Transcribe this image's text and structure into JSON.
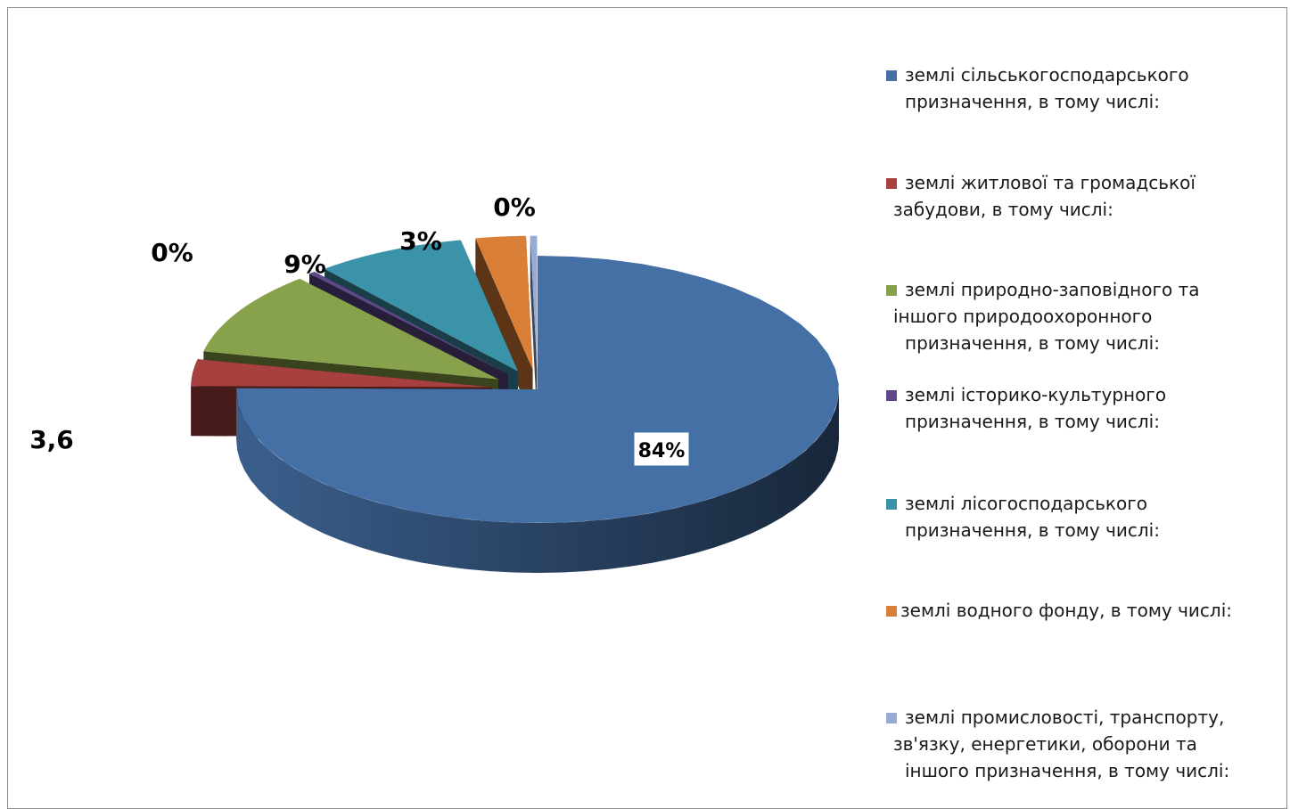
{
  "chart_data": {
    "type": "pie",
    "style": "3d-exploded",
    "slices": [
      {
        "label": "землі сільськогосподарського призначення, в тому числі:",
        "value": 84,
        "data_label": "84%",
        "color": "#4570A6"
      },
      {
        "label": "землі житлової та громадської забудови, в тому числі:",
        "value": 3.6,
        "data_label": "3,6",
        "color": "#A8403F"
      },
      {
        "label": "землі природно-заповідного та іншого природоохоронного призначення, в тому числі:",
        "value": 11.4,
        "data_label": "",
        "color": "#87A24A"
      },
      {
        "label": "землі історико-культурного призначення, в тому числі:",
        "value": 0.4,
        "data_label": "0%",
        "color": "#5E4887"
      },
      {
        "label": "землі лісогосподарського призначення, в тому числі:",
        "value": 9,
        "data_label": "9%",
        "color": "#3B93A9"
      },
      {
        "label": "землі водного фонду, в тому числі:",
        "value": 3,
        "data_label": "3%",
        "color": "#DA7F37"
      },
      {
        "label": "землі промисловості, транспорту, зв'язку, енергетики, оборони та іншого призначення, в тому числі:",
        "value": 0.4,
        "data_label": "0%",
        "color": "#96ABD5"
      }
    ],
    "legend_position": "right"
  },
  "legend": [
    {
      "line1": "землі сільськогосподарського",
      "line2": "призначення, в тому числі:",
      "line3": "",
      "color": "#4570A6"
    },
    {
      "line1": "землі житлової та громадської",
      "line2": "забудови, в тому числі:",
      "line3": "",
      "color": "#A8403F"
    },
    {
      "line1": "землі природно-заповідного та",
      "line2": "іншого природоохоронного",
      "line3": "призначення, в тому числі:",
      "color": "#87A24A"
    },
    {
      "line1": "землі історико-культурного",
      "line2": "призначення, в тому числі:",
      "line3": "",
      "color": "#5E4887"
    },
    {
      "line1": "землі лісогосподарського",
      "line2": "призначення, в тому числі:",
      "line3": "",
      "color": "#3B93A9"
    },
    {
      "line1": "землі водного фонду, в тому числі:",
      "line2": "",
      "line3": "",
      "color": "#DA7F37"
    },
    {
      "line1": "землі промисловості, транспорту,",
      "line2": "зв'язку, енергетики, оборони та",
      "line3": "іншого призначення, в тому числі:",
      "color": "#96ABD5"
    }
  ]
}
